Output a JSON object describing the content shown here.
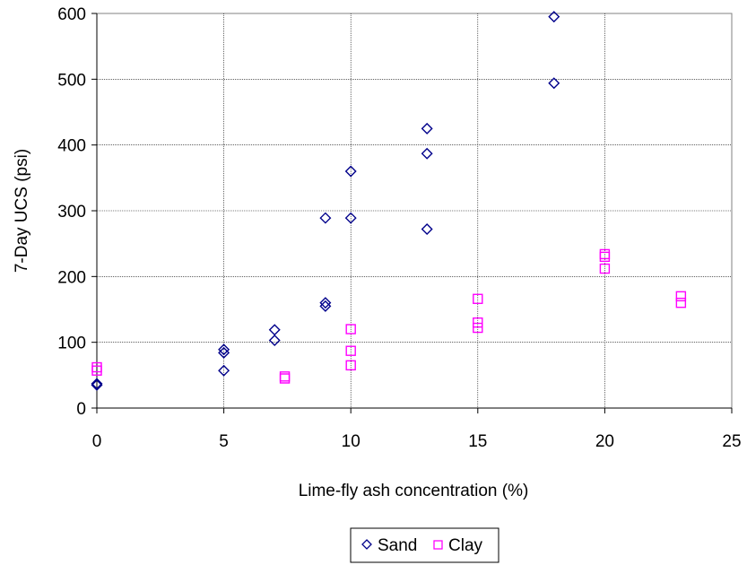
{
  "chart_data": {
    "type": "scatter",
    "title": "",
    "xlabel": "Lime-fly ash concentration (%)",
    "ylabel": "7-Day UCS (psi)",
    "xlim": [
      0,
      25
    ],
    "ylim": [
      0,
      600
    ],
    "xticks": [
      "0",
      "5",
      "10",
      "15",
      "20",
      "25"
    ],
    "yticks": [
      "0",
      "100",
      "200",
      "300",
      "400",
      "500",
      "600"
    ],
    "grid": true,
    "legend_position": "bottom-center",
    "series": [
      {
        "name": "Sand",
        "marker": "diamond",
        "color": "#00008B",
        "points": [
          {
            "x": 0,
            "y": 35
          },
          {
            "x": 0,
            "y": 37
          },
          {
            "x": 5,
            "y": 57
          },
          {
            "x": 5,
            "y": 84
          },
          {
            "x": 5,
            "y": 89
          },
          {
            "x": 7,
            "y": 103
          },
          {
            "x": 7,
            "y": 119
          },
          {
            "x": 9,
            "y": 155
          },
          {
            "x": 9,
            "y": 160
          },
          {
            "x": 9,
            "y": 289
          },
          {
            "x": 10,
            "y": 289
          },
          {
            "x": 10,
            "y": 360
          },
          {
            "x": 13,
            "y": 272
          },
          {
            "x": 13,
            "y": 387
          },
          {
            "x": 13,
            "y": 425
          },
          {
            "x": 18,
            "y": 494
          },
          {
            "x": 18,
            "y": 595
          }
        ]
      },
      {
        "name": "Clay",
        "marker": "square",
        "color": "#FF00FF",
        "points": [
          {
            "x": 0,
            "y": 57
          },
          {
            "x": 0,
            "y": 62
          },
          {
            "x": 7.4,
            "y": 45
          },
          {
            "x": 7.4,
            "y": 48
          },
          {
            "x": 10,
            "y": 65
          },
          {
            "x": 10,
            "y": 87
          },
          {
            "x": 10,
            "y": 120
          },
          {
            "x": 15,
            "y": 122
          },
          {
            "x": 15,
            "y": 130
          },
          {
            "x": 15,
            "y": 166
          },
          {
            "x": 20,
            "y": 212
          },
          {
            "x": 20,
            "y": 230
          },
          {
            "x": 20,
            "y": 234
          },
          {
            "x": 23,
            "y": 160
          },
          {
            "x": 23,
            "y": 170
          }
        ]
      }
    ]
  }
}
